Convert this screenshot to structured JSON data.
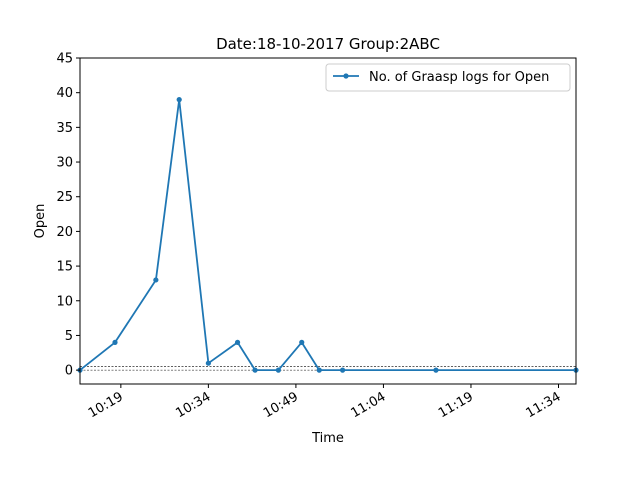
{
  "chart_data": {
    "type": "line",
    "title": "Date:18-10-2017  Group:2ABC",
    "xlabel": "Time",
    "ylabel": "Open",
    "xlim": [
      "10:12",
      "11:37"
    ],
    "ylim": [
      -2,
      45
    ],
    "x_ticks": [
      "10:19",
      "10:34",
      "10:49",
      "11:04",
      "11:19",
      "11:34"
    ],
    "y_ticks": [
      0,
      5,
      10,
      15,
      20,
      25,
      30,
      35,
      40,
      45
    ],
    "legend_position": "top-right",
    "grid": false,
    "reference_lines": [
      0,
      0.5
    ],
    "series": [
      {
        "name": "No. of Graasp logs for Open",
        "color": "#1f77b4",
        "x": [
          "10:12",
          "10:18",
          "10:25",
          "10:29",
          "10:34",
          "10:39",
          "10:42",
          "10:46",
          "10:50",
          "10:53",
          "10:57",
          "11:13",
          "11:37"
        ],
        "values": [
          0,
          4,
          13,
          39,
          1,
          4,
          0,
          0,
          4,
          0,
          0,
          0,
          0
        ]
      }
    ]
  }
}
